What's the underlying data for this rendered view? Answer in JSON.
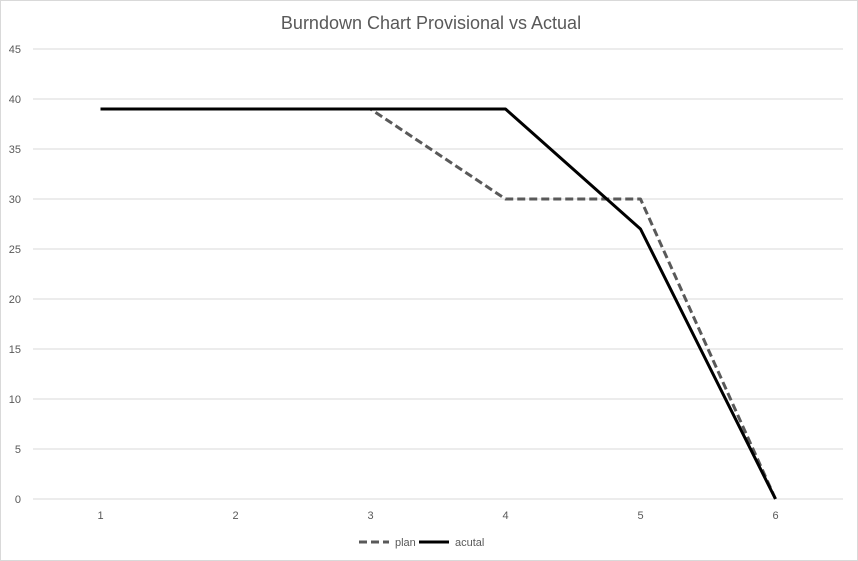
{
  "chart_data": {
    "type": "line",
    "title": "Burndown Chart Provisional vs Actual",
    "xlabel": "",
    "ylabel": "",
    "categories": [
      "1",
      "2",
      "3",
      "4",
      "5",
      "6"
    ],
    "ylim": [
      0,
      45
    ],
    "yticks": [
      "0",
      "5",
      "10",
      "15",
      "20",
      "25",
      "30",
      "35",
      "40",
      "45"
    ],
    "grid": true,
    "legend_position": "bottom",
    "series": [
      {
        "name": "plan",
        "values": [
          39,
          39,
          39,
          30,
          30,
          0
        ],
        "color": "#595959",
        "style": "dashed"
      },
      {
        "name": "acutal",
        "values": [
          39,
          39,
          39,
          39,
          27,
          0
        ],
        "color": "#000000",
        "style": "solid"
      }
    ]
  }
}
